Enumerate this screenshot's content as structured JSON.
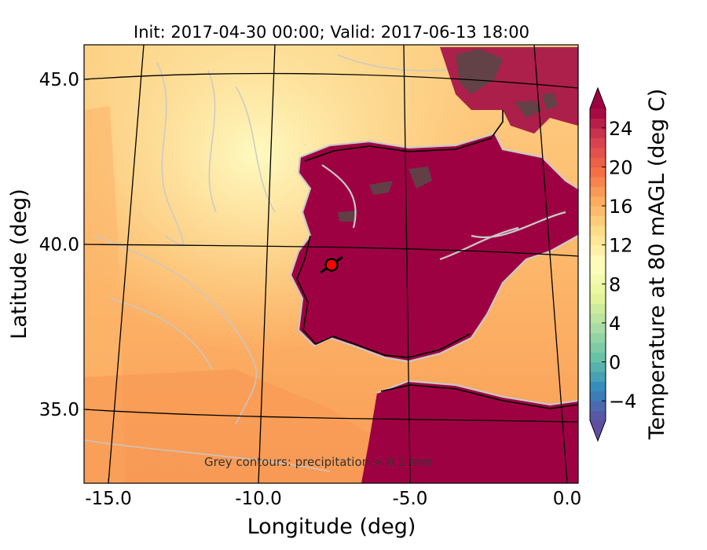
{
  "chart_data": {
    "type": "heatmap",
    "title": "Init: 2017-04-30 00:00; Valid: 2017-06-13 18:00",
    "xlabel": "Longitude (deg)",
    "ylabel": "Latitude (deg)",
    "x_ticks": [
      "-15.0",
      "-10.0",
      "-5.0",
      "0.0"
    ],
    "y_ticks": [
      "45.0",
      "40.0",
      "35.0"
    ],
    "x_tick_values": [
      -15,
      -10,
      -5,
      0
    ],
    "y_tick_values": [
      45,
      40,
      35
    ],
    "xlim": [
      -16,
      0.1
    ],
    "ylim": [
      32.7,
      46.1
    ],
    "colorbar": {
      "label": "Temperature at 80 mAGL (deg C)",
      "ticks": [
        "24",
        "20",
        "16",
        "12",
        "8",
        "4",
        "0",
        "−4"
      ],
      "tick_values": [
        24,
        20,
        16,
        12,
        8,
        4,
        0,
        -4
      ],
      "range": [
        -6,
        26
      ],
      "extend": "both",
      "colormap": "Spectral_r",
      "colors": [
        "#5e4fa2",
        "#3288bd",
        "#66c2a5",
        "#abdda4",
        "#e6f598",
        "#ffffbf",
        "#fee08b",
        "#fdae61",
        "#f46d43",
        "#d53e4f",
        "#9e0142"
      ]
    },
    "annotation": "Grey contours: precipitation > 0.1 mm",
    "marker": {
      "lon": -7.6,
      "lat": 39.4,
      "color": "#ff0000"
    }
  }
}
